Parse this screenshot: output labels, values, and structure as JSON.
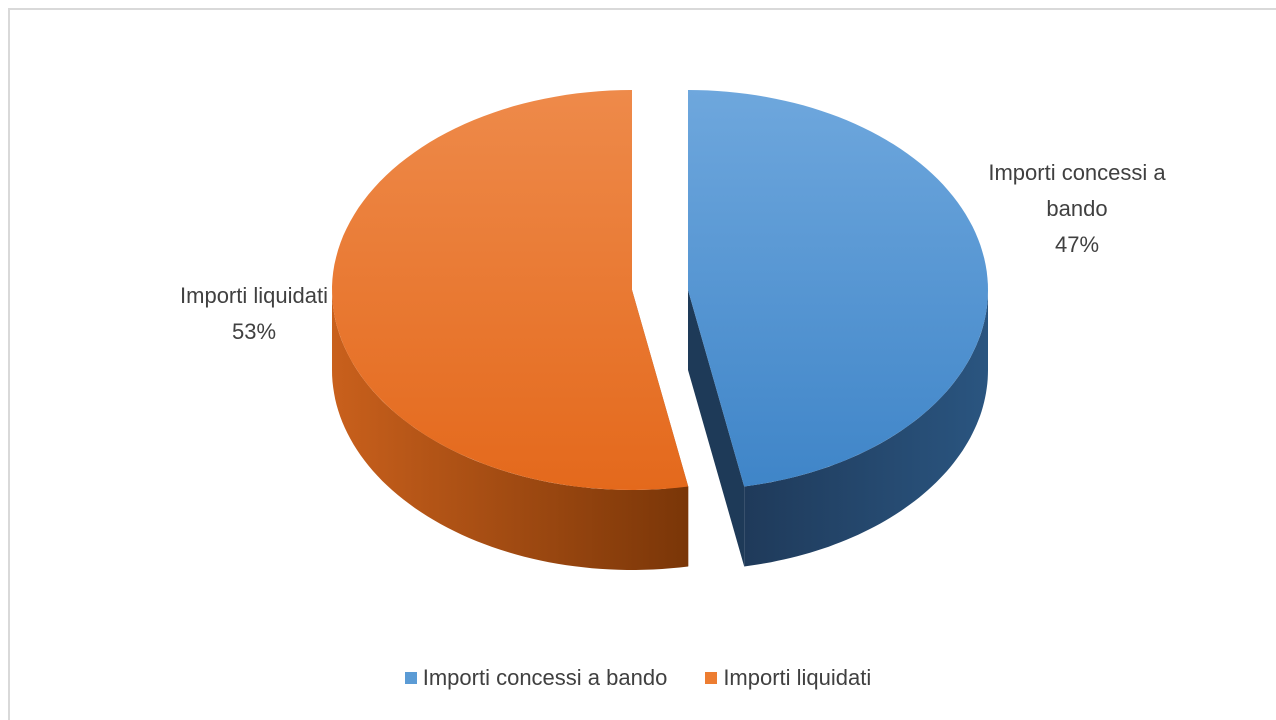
{
  "chart_data": {
    "type": "pie",
    "three_d": true,
    "exploded": true,
    "categories": [
      "Importi concessi a bando",
      "Importi liquidati"
    ],
    "values": [
      47,
      53
    ],
    "unit": "%",
    "colors": [
      "#5b9bd5",
      "#ed7d31"
    ],
    "data_labels": [
      {
        "lines": [
          "Importi concessi a",
          "bando",
          "47%"
        ]
      },
      {
        "lines": [
          "Importi liquidati",
          "53%"
        ]
      }
    ],
    "legend": {
      "position": "bottom",
      "items": [
        {
          "label": "Importi concessi a bando",
          "color": "#5b9bd5"
        },
        {
          "label": "Importi liquidati",
          "color": "#ed7d31"
        }
      ]
    }
  }
}
